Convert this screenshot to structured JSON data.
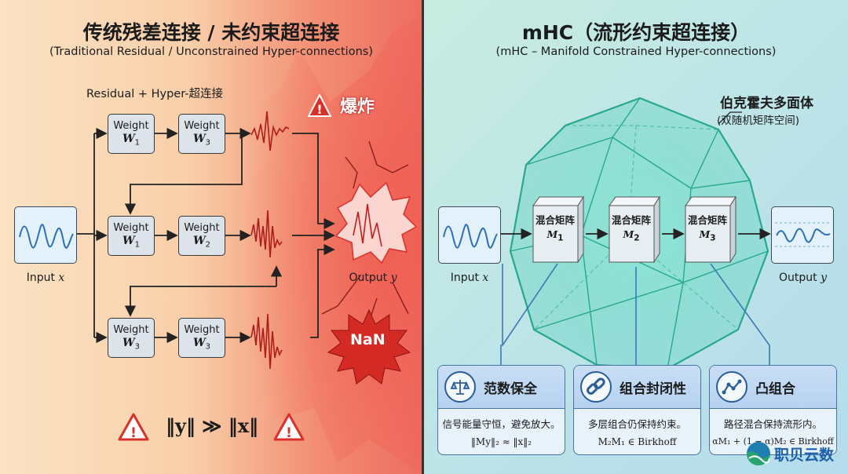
{
  "left": {
    "title": "传统残差连接 / 未约束超连接",
    "subtitle": "(Traditional Residual / Unconstrained Hyper-connections)",
    "section_label": "Residual + Hyper-超连接",
    "explosion_label": "爆炸",
    "input_label": "Input",
    "input_var": "x",
    "output_label": "Output",
    "output_var": "y",
    "nan_label": "NaN",
    "weight_word": "Weight",
    "weights": [
      [
        {
          "sym": "W",
          "sub": "1"
        },
        {
          "sym": "W",
          "sub": "3"
        }
      ],
      [
        {
          "sym": "W",
          "sub": "1"
        },
        {
          "sym": "W",
          "sub": "2"
        }
      ],
      [
        {
          "sym": "W",
          "sub": "3"
        },
        {
          "sym": "W",
          "sub": "3"
        }
      ]
    ],
    "formula": "‖y‖ ≫ ‖x‖"
  },
  "right": {
    "title": "mHC（流形约束超连接）",
    "subtitle": "(mHC – Manifold Constrained Hyper-connections)",
    "polytope_label": "伯克霍夫多面体",
    "polytope_sublabel": "(双随机矩阵空间)",
    "input_label": "Input",
    "input_var": "x",
    "output_label": "Output",
    "output_var": "y",
    "mixers": [
      {
        "label": "混合矩阵",
        "sym": "M",
        "sub": "1"
      },
      {
        "label": "混合矩阵",
        "sym": "M",
        "sub": "2"
      },
      {
        "label": "混合矩阵",
        "sym": "M",
        "sub": "3"
      }
    ],
    "cards": [
      {
        "icon": "balance-scale-icon",
        "title": "范数保全",
        "desc": "信号能量守恒，避免放大。",
        "formula": "‖My‖₂ ≈ ‖x‖₂"
      },
      {
        "icon": "chain-link-icon",
        "title": "组合封闭性",
        "desc": "多层组合仍保持约束。",
        "formula": "M₂M₁ ∈ Birkhoff"
      },
      {
        "icon": "line-chart-icon",
        "title": "凸组合",
        "desc": "路径混合保持流形内。",
        "formula": "αM₁ + (1 − α)M₂ ∈ Birkhoff"
      }
    ]
  },
  "watermark": "职贝云数",
  "colors": {
    "danger": "#d8302a",
    "accent_teal": "#2bb59a",
    "card_border": "#4774a8",
    "signal_blue": "#2c6fb5"
  }
}
